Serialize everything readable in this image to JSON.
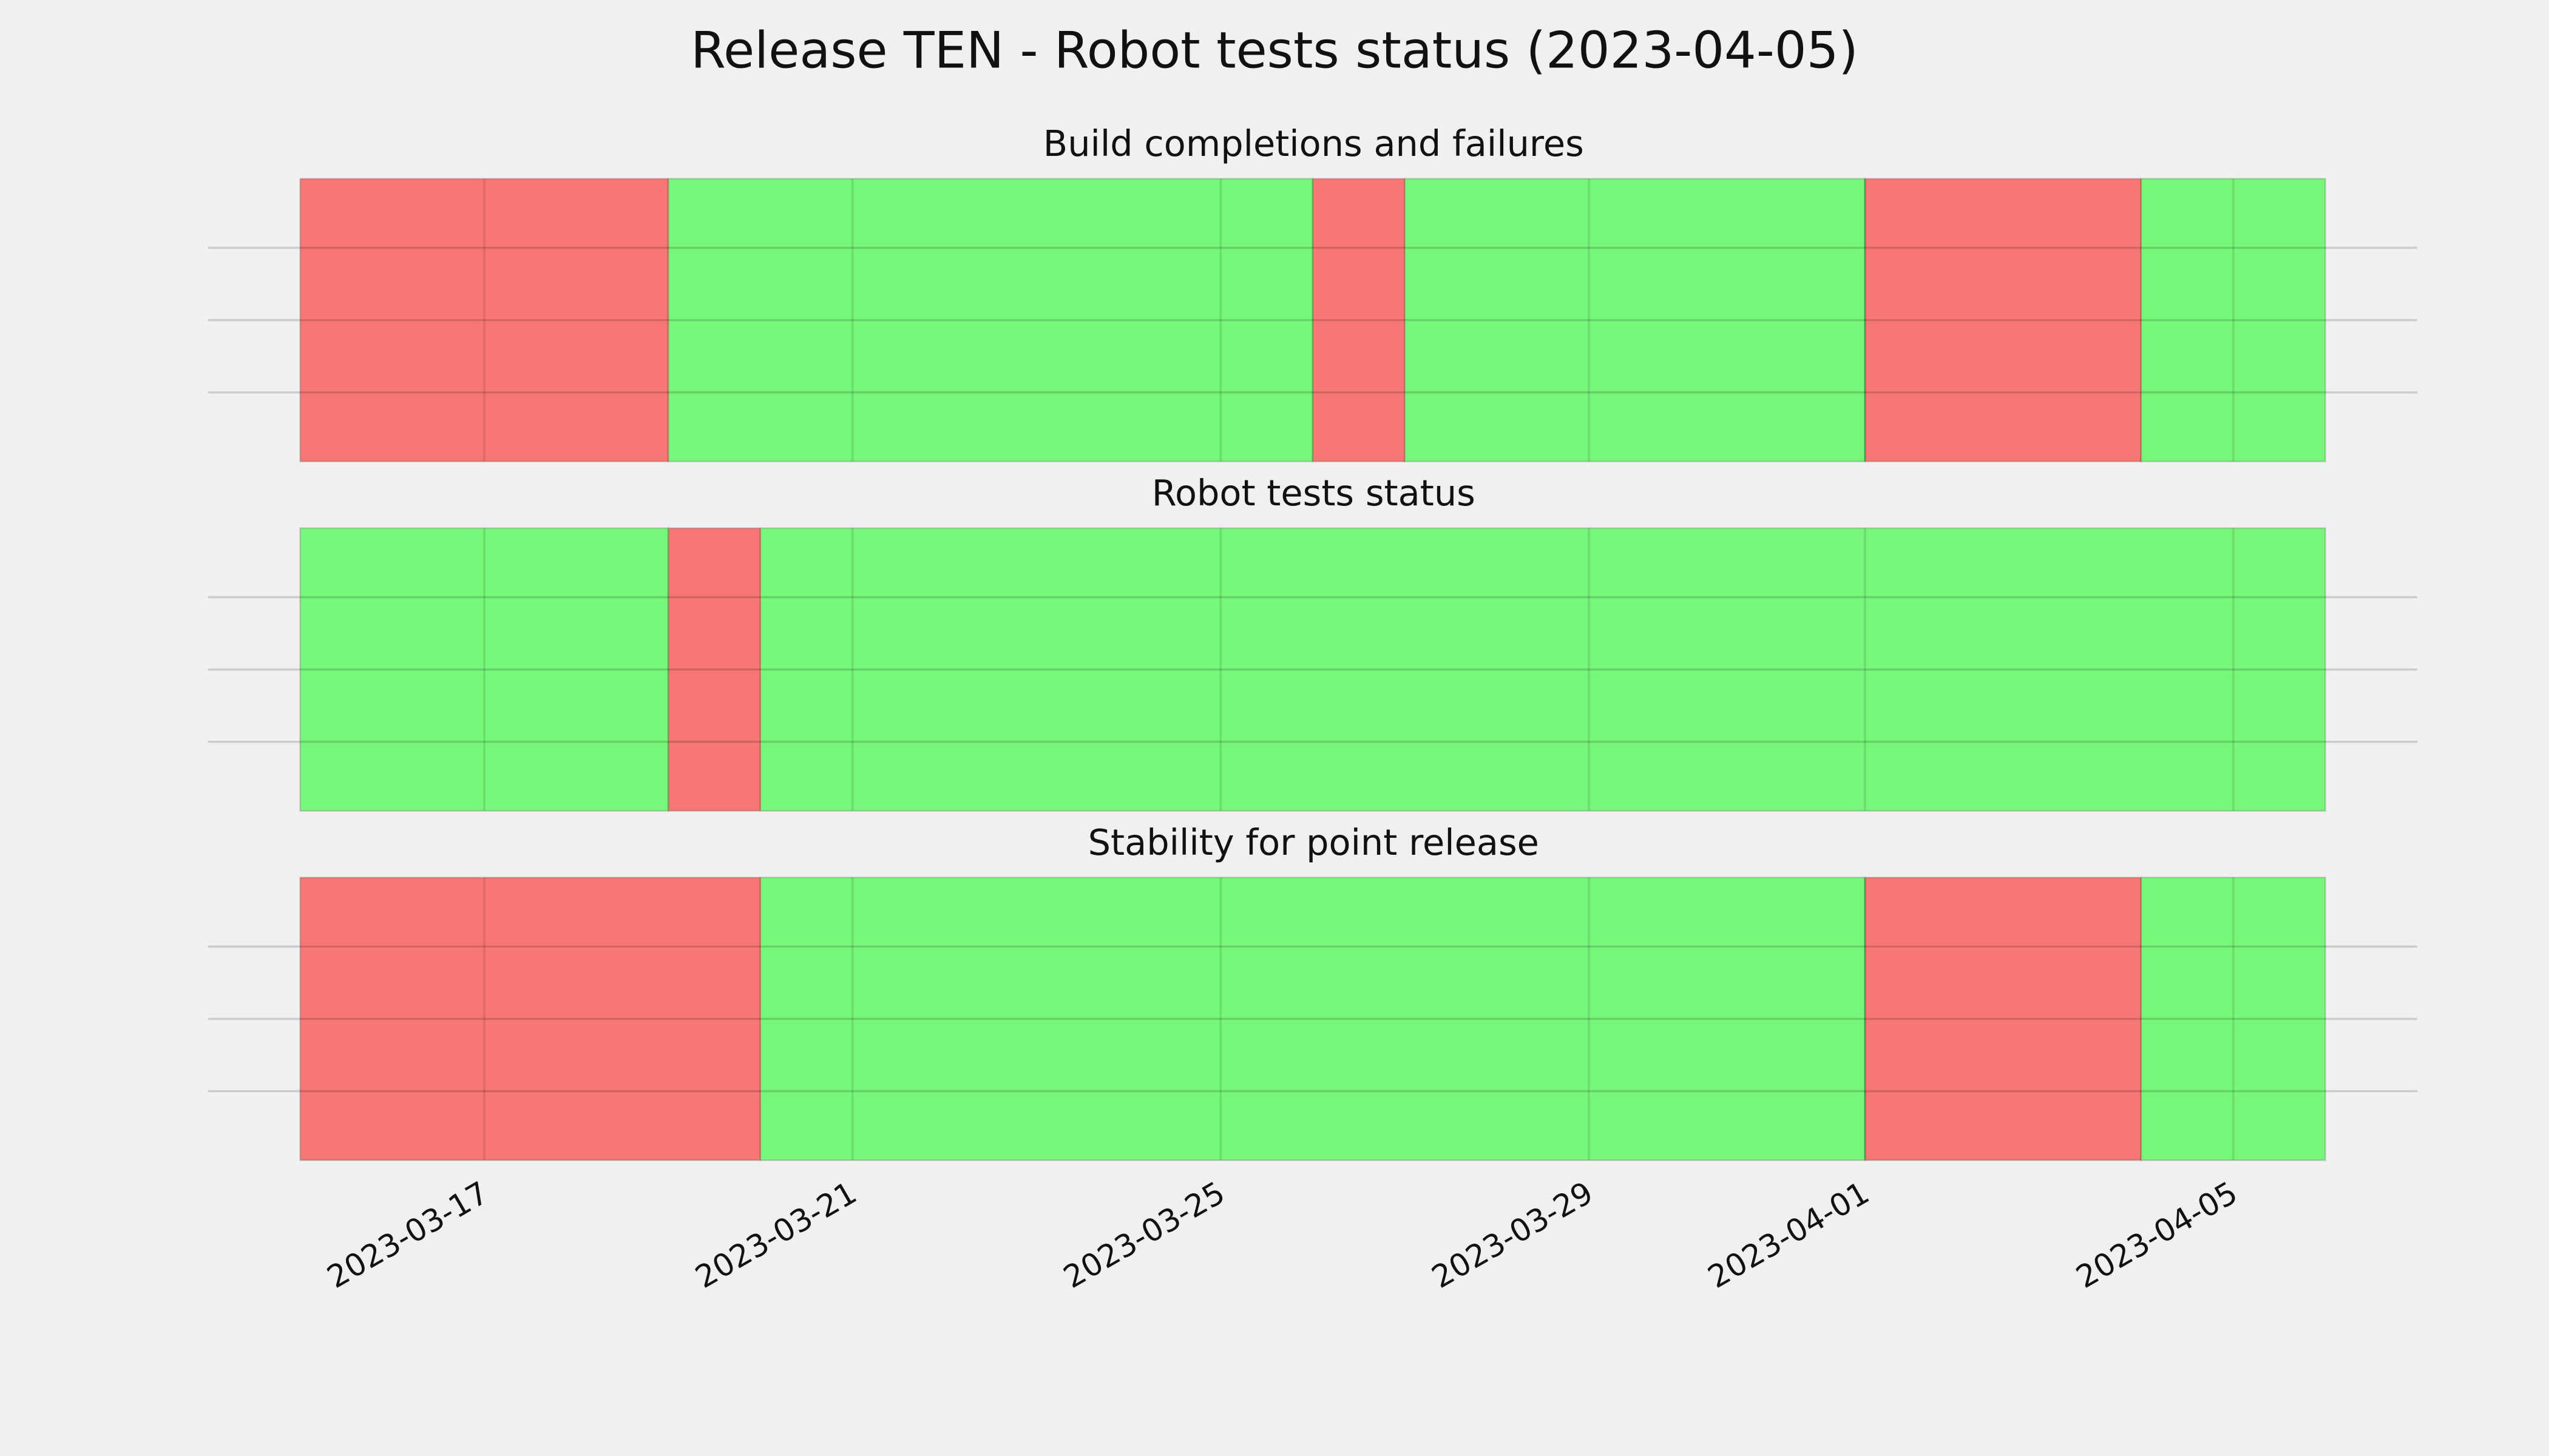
{
  "chart_data": {
    "type": "timeline",
    "title": "Release TEN - Robot tests status (2023-04-05)",
    "xlim": [
      "2023-03-14",
      "2023-04-07"
    ],
    "xticks": [
      "2023-03-17",
      "2023-03-21",
      "2023-03-25",
      "2023-03-29",
      "2023-04-01",
      "2023-04-05"
    ],
    "grid": true,
    "panels": [
      {
        "title": "Build completions and failures",
        "segments": [
          {
            "start": "2023-03-15",
            "end": "2023-03-19",
            "color": "#f77774"
          },
          {
            "start": "2023-03-19",
            "end": "2023-03-26",
            "color": "#76f77a"
          },
          {
            "start": "2023-03-26",
            "end": "2023-03-27",
            "color": "#f77774"
          },
          {
            "start": "2023-03-27",
            "end": "2023-04-01",
            "color": "#76f77a"
          },
          {
            "start": "2023-04-01",
            "end": "2023-04-04",
            "color": "#f77774"
          },
          {
            "start": "2023-04-04",
            "end": "2023-04-06",
            "color": "#76f77a"
          }
        ]
      },
      {
        "title": "Robot tests status",
        "segments": [
          {
            "start": "2023-03-15",
            "end": "2023-03-19",
            "color": "#76f77a"
          },
          {
            "start": "2023-03-19",
            "end": "2023-03-20",
            "color": "#f77774"
          },
          {
            "start": "2023-03-20",
            "end": "2023-04-06",
            "color": "#76f77a"
          }
        ]
      },
      {
        "title": "Stability for point release",
        "segments": [
          {
            "start": "2023-03-15",
            "end": "2023-03-20",
            "color": "#f77774"
          },
          {
            "start": "2023-03-20",
            "end": "2023-04-01",
            "color": "#76f77a"
          },
          {
            "start": "2023-04-01",
            "end": "2023-04-04",
            "color": "#f77774"
          },
          {
            "start": "2023-04-04",
            "end": "2023-04-06",
            "color": "#76f77a"
          }
        ]
      }
    ]
  }
}
